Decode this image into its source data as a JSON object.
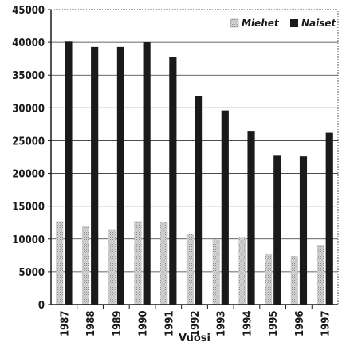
{
  "chart_data": {
    "type": "bar",
    "categories": [
      "1987",
      "1988",
      "1989",
      "1990",
      "1991",
      "1992",
      "1993",
      "1994",
      "1995",
      "1996",
      "1997"
    ],
    "series": [
      {
        "name": "Miehet",
        "values": [
          12700,
          11900,
          11500,
          12700,
          12600,
          10700,
          9900,
          10300,
          7800,
          7400,
          9100
        ],
        "color": "#b8b8b8",
        "pattern": "dotted-gray"
      },
      {
        "name": "Naiset",
        "values": [
          40100,
          39300,
          39300,
          40000,
          37700,
          31800,
          29600,
          26500,
          22700,
          22600,
          26200
        ],
        "color": "#1a1a1a",
        "pattern": "solid"
      }
    ],
    "title": "",
    "xlabel": "Vuosi",
    "ylabel": "",
    "ylim": [
      0,
      45000
    ],
    "yticks": [
      0,
      5000,
      10000,
      15000,
      20000,
      25000,
      30000,
      35000,
      40000,
      45000
    ],
    "grid": true,
    "legend": "top-right"
  }
}
